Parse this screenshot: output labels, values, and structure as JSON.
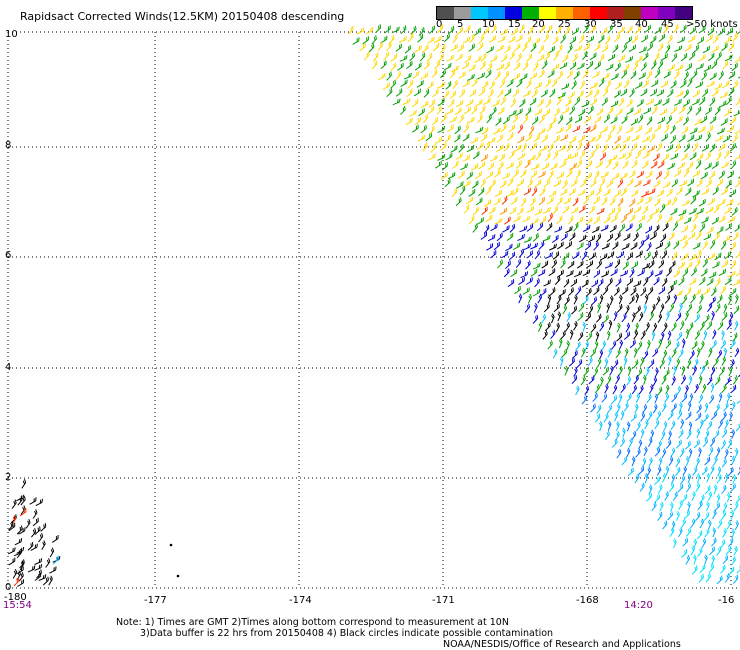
{
  "title": "Rapidsact Corrected Winds(12.5KM) 20150408 descending",
  "colorbar": {
    "labels": [
      "0",
      "5",
      "10",
      "15",
      "20",
      "25",
      "30",
      "35",
      "40",
      "45",
      ">50 knots"
    ],
    "colors": [
      "#505050",
      "#9c9c9c",
      "#00c8ff",
      "#0090ff",
      "#0000e0",
      "#00b000",
      "#ffff00",
      "#ffb000",
      "#ff6000",
      "#ff0000",
      "#b02020",
      "#804000",
      "#c000c0",
      "#8000c0",
      "#400080"
    ]
  },
  "axes": {
    "y_ticks": [
      "10",
      "8",
      "6",
      "4",
      "2",
      "0"
    ],
    "x_ticks": [
      "-180",
      "-177",
      "-174",
      "-171",
      "-168",
      "-16"
    ]
  },
  "times": {
    "left": "15:54",
    "right": "14:20"
  },
  "notes": {
    "line1": "Note: 1) Times are GMT 2)Times along bottom correspond to measurement at 10N",
    "line2": "3)Data buffer is 22 hrs from 20150408 4) Black circles indicate possible contamination",
    "credit": "NOAA/NESDIS/Office of Research and Applications"
  }
}
